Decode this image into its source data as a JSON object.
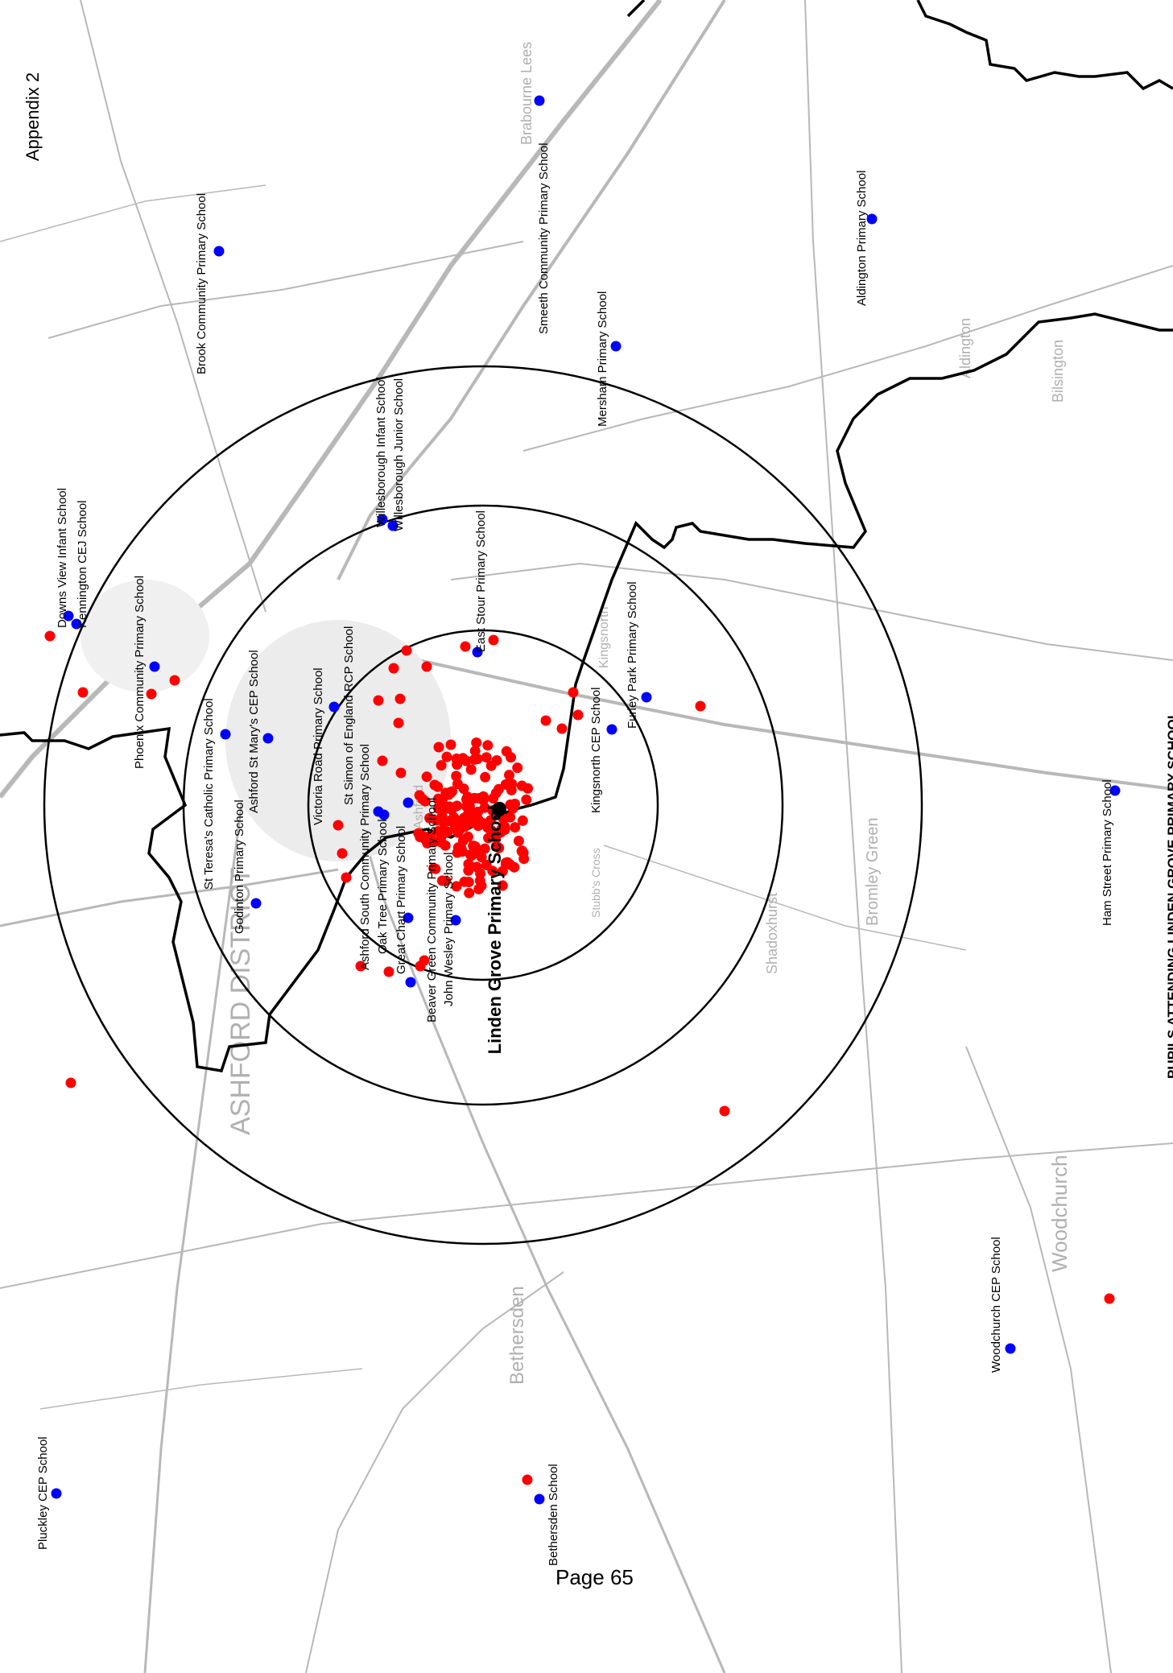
{
  "header": {
    "appendix_label": "Appendix 2",
    "title": "PUPILS ATTENDING LINDEN GROVE PRIMARY SCHOOL"
  },
  "footer": {
    "page_label": "Page 65"
  },
  "target_school": {
    "name": "Linden Grove Primary School"
  },
  "basemap_words": {
    "district": "ASHFORD DISTRICT",
    "town1": "Ashford",
    "town2": "Bethersden",
    "town3": "Woodchurch",
    "town4": "Shadoxhurst",
    "town5": "Stubb's Cross",
    "town6": "Bromley Green",
    "town7": "Kingsnorth",
    "town8": "Brabourne Lees",
    "town9": "Aldington",
    "town10": "Bilsington"
  },
  "schools": [
    {
      "name": "Brook Community Primary School"
    },
    {
      "name": "Smeeth Community Primary School"
    },
    {
      "name": "Aldington Primary School"
    },
    {
      "name": "Mersham Primary School"
    },
    {
      "name": "Downs View Infant School"
    },
    {
      "name": "Kennington CEJ School"
    },
    {
      "name": "Phoenix Community Primary School"
    },
    {
      "name": "Willesborough Infant School"
    },
    {
      "name": "Willesborough Junior School"
    },
    {
      "name": "East Stour Primary School"
    },
    {
      "name": "Furley Park Primary School"
    },
    {
      "name": "St Teresa's Catholic Primary School"
    },
    {
      "name": "Ashford St Mary's CEP School"
    },
    {
      "name": "Victoria Road Primary School"
    },
    {
      "name": "St Simon of England RCP School"
    },
    {
      "name": "Kingsnorth CEP School"
    },
    {
      "name": "Godinton Primary School"
    },
    {
      "name": "Ashford South Community Primary School"
    },
    {
      "name": "Oak Tree Primary School"
    },
    {
      "name": "Great Chart Primary School"
    },
    {
      "name": "Beaver Green Community Primary School"
    },
    {
      "name": "John Wesley Primary School"
    },
    {
      "name": "Ham Street Primary School"
    },
    {
      "name": "Woodchurch CEP School"
    },
    {
      "name": "Pluckley CEP School"
    },
    {
      "name": "Bethersden School"
    }
  ],
  "legend_colors": {
    "pupil_dot": "#ff0000",
    "school_dot": "#0000ff",
    "target_school_dot": "#000000",
    "boundary_line": "#000000"
  },
  "ring_count": 3
}
